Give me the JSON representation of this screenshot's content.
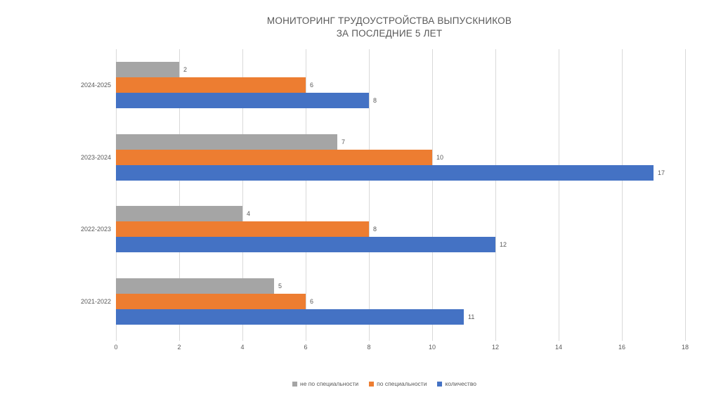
{
  "title": {
    "line1": "МОНИТОРИНГ ТРУДОУСТРОЙСТВА ВЫПУСКНИКОВ",
    "line2": "ЗА ПОСЛЕДНИЕ 5 ЛЕТ"
  },
  "colors": {
    "background": "#FFFFFF",
    "gridline": "#D9D9D9",
    "text": "#595959"
  },
  "chart_data": {
    "type": "bar",
    "orientation": "horizontal",
    "title": "МОНИТОРИНГ ТРУДОУСТРОЙСТВА ВЫПУСКНИКОВ ЗА ПОСЛЕДНИЕ 5 ЛЕТ",
    "categories": [
      "2024-2025",
      "2023-2024",
      "2022-2023",
      "2021-2022"
    ],
    "series": [
      {
        "name": "не по специальности",
        "color": "#A5A5A5",
        "values": [
          2,
          7,
          4,
          5
        ]
      },
      {
        "name": "по специальности",
        "color": "#ED7D31",
        "values": [
          6,
          10,
          8,
          6
        ]
      },
      {
        "name": "количество",
        "color": "#4472C4",
        "values": [
          8,
          17,
          12,
          11
        ]
      }
    ],
    "xlim": [
      0,
      18
    ],
    "x_ticks": [
      0,
      2,
      4,
      6,
      8,
      10,
      12,
      14,
      16,
      18
    ],
    "grid": true,
    "data_labels": true,
    "legend_position": "bottom"
  }
}
